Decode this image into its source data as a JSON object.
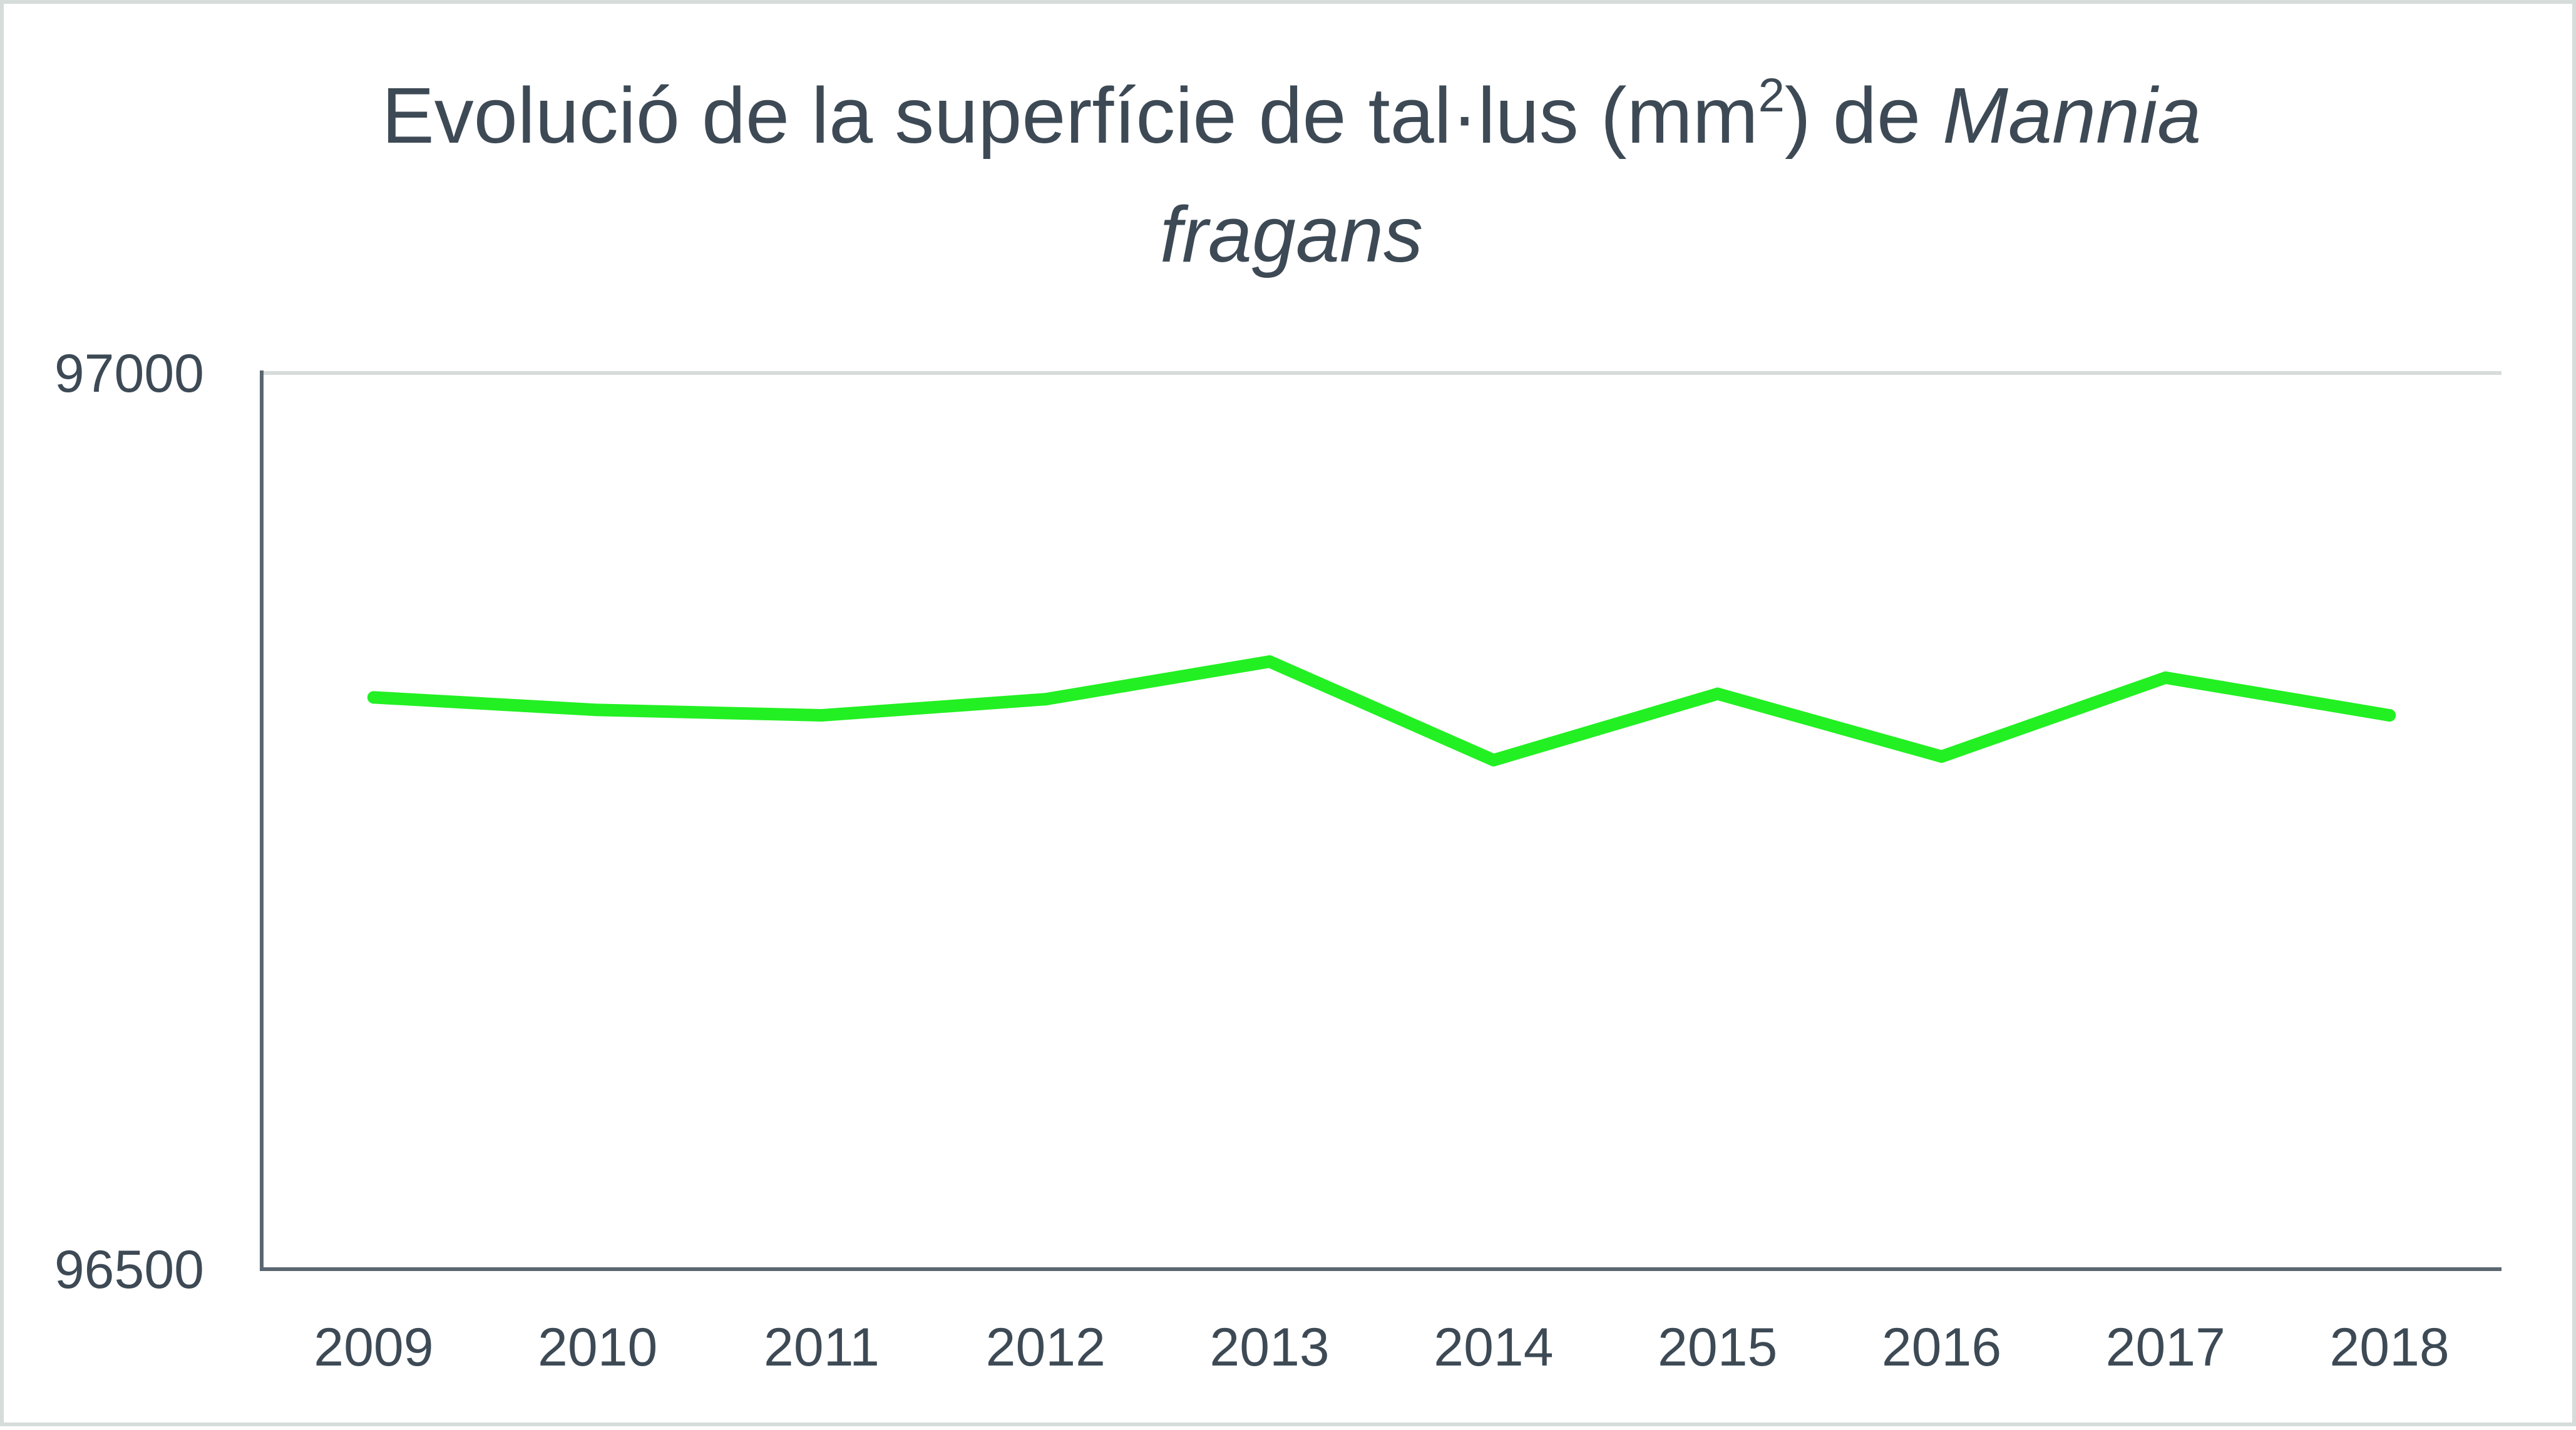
{
  "chart_data": {
    "type": "line",
    "title": {
      "line1_prefix": "Evolució de la superfície de tal·lus (mm",
      "superscript": "2",
      "line1_suffix": ") de ",
      "line1_italic": "Mannia",
      "line2_italic": "fragans"
    },
    "xlabel": "",
    "ylabel": "",
    "categories": [
      "2009",
      "2010",
      "2011",
      "2012",
      "2013",
      "2014",
      "2015",
      "2016",
      "2017",
      "2018"
    ],
    "series": [
      {
        "values": [
          96819,
          96812,
          96809,
          96818,
          96839,
          96784,
          96821,
          96786,
          96830,
          96809
        ],
        "color": "#22f022"
      }
    ],
    "ylim": [
      96500,
      97000
    ],
    "yticks": [
      "96500",
      "97000"
    ],
    "grid": true,
    "legend": "none",
    "colors": {
      "axis": "#5b6770",
      "gridline": "#d5dcd9",
      "text": "#3d4a55"
    }
  }
}
